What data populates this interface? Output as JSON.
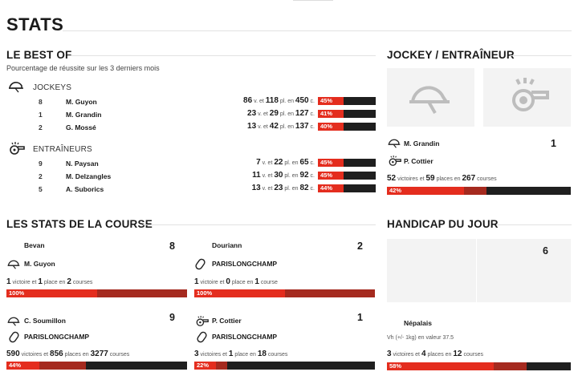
{
  "page_title": "STATS",
  "best_of": {
    "title": "LE BEST OF",
    "subtitle": "Pourcentage de réussite sur les 3 derniers mois",
    "jockeys_label": "JOCKEYS",
    "trainers_label": "ENTRAÎNEURS",
    "word_v_et": "v. et",
    "word_pl_en": "pl. en",
    "word_c": "c.",
    "jockeys": [
      {
        "num": "8",
        "name": "M. Guyon",
        "wins": "86",
        "places": "118",
        "courses": "450",
        "pct_label": "45%",
        "pct": 45
      },
      {
        "num": "1",
        "name": "M. Grandin",
        "wins": "23",
        "places": "29",
        "courses": "127",
        "pct_label": "41%",
        "pct": 41
      },
      {
        "num": "2",
        "name": "G. Mossé",
        "wins": "13",
        "places": "42",
        "courses": "137",
        "pct_label": "40%",
        "pct": 40
      }
    ],
    "trainers": [
      {
        "num": "9",
        "name": "N. Paysan",
        "wins": "7",
        "places": "22",
        "courses": "65",
        "pct_label": "45%",
        "pct": 45
      },
      {
        "num": "2",
        "name": "M. Delzangles",
        "wins": "11",
        "places": "30",
        "courses": "92",
        "pct_label": "45%",
        "pct": 45
      },
      {
        "num": "5",
        "name": "A. Suborics",
        "wins": "13",
        "places": "23",
        "courses": "82",
        "pct_label": "44%",
        "pct": 44
      }
    ]
  },
  "jockey_trainer": {
    "title": "JOCKEY / ENTRAÎNEUR",
    "jockey": "M. Grandin",
    "trainer": "P. Cottier",
    "number": "1",
    "wins": "52",
    "word_wins": "victoires et",
    "places": "59",
    "word_places": "places en",
    "courses": "267",
    "word_courses": "courses",
    "pct_label": "42%",
    "pct": 42
  },
  "race_stats": {
    "title": "LES STATS DE LA COURSE",
    "cards": [
      {
        "horse": "Bevan",
        "number": "8",
        "person": "M. Guyon",
        "person_type": "jockey",
        "place_label": "PARISLONGCHAMP",
        "wins": "1",
        "word_wins": "victoire et",
        "places": "1",
        "word_places": "place en",
        "courses": "2",
        "word_courses": "courses",
        "pct_label": "100%",
        "pct": 100,
        "show_place": false
      },
      {
        "horse": "Douriann",
        "number": "2",
        "person": "PARISLONGCHAMP",
        "person_type": "track",
        "place_label": "",
        "wins": "1",
        "word_wins": "victoire et",
        "places": "0",
        "word_places": "place en",
        "courses": "1",
        "word_courses": "course",
        "pct_label": "100%",
        "pct": 100,
        "show_place": false
      },
      {
        "horse": "",
        "number": "9",
        "person": "C. Soumillon",
        "person_type": "jockey",
        "place_label": "PARISLONGCHAMP",
        "wins": "590",
        "word_wins": "victoires et",
        "places": "856",
        "word_places": "places en",
        "courses": "3277",
        "word_courses": "courses",
        "pct_label": "44%",
        "pct": 44,
        "show_place": true
      },
      {
        "horse": "",
        "number": "1",
        "person": "P. Cottier",
        "person_type": "trainer",
        "place_label": "PARISLONGCHAMP",
        "wins": "3",
        "word_wins": "victoires et",
        "places": "1",
        "word_places": "place en",
        "courses": "18",
        "word_courses": "courses",
        "pct_label": "22%",
        "pct": 22,
        "show_place": true
      }
    ]
  },
  "handicap": {
    "title": "HANDICAP DU JOUR",
    "number": "6",
    "horse": "Népalais",
    "note": "Vh (+/- 1kg) en valeur 37.5",
    "wins": "3",
    "word_wins": "victoires et",
    "places": "4",
    "word_places": "places en",
    "courses": "12",
    "word_courses": "courses",
    "pct_label": "58%",
    "pct": 58
  },
  "colors": {
    "accent_red": "#e42d1e",
    "dark_red": "#a52a1f",
    "bar_dark": "#1f1f1f"
  }
}
